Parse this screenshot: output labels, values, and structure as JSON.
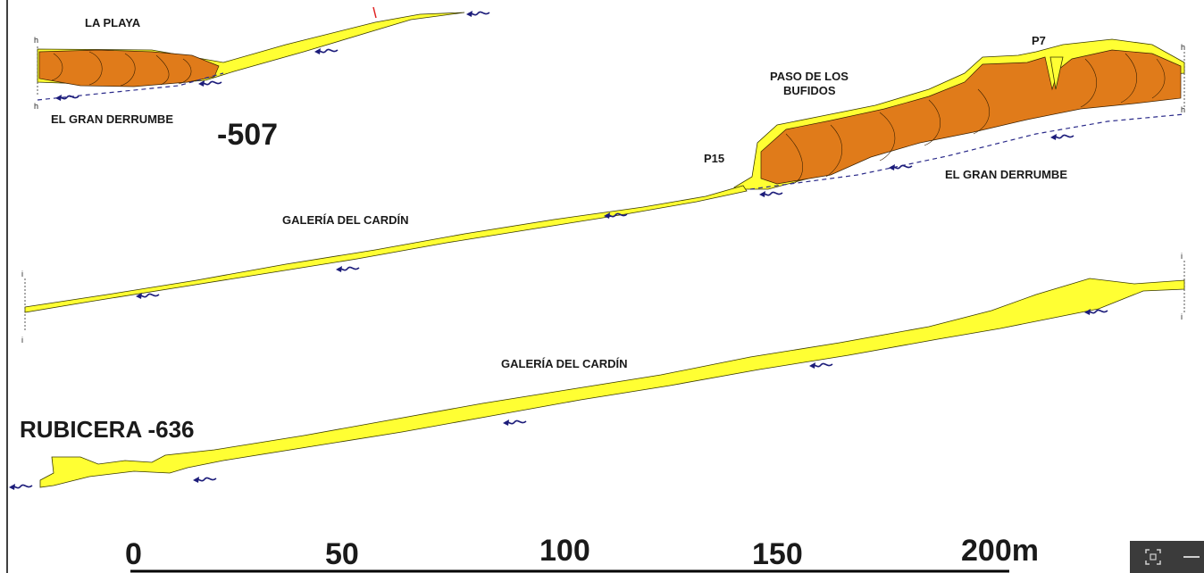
{
  "labels": {
    "la_playa": "LA PLAYA",
    "gran_derrumbe_left": "EL GRAN DERRUMBE",
    "depth_507": "-507",
    "paso_line1": "PASO DE LOS",
    "paso_line2": "BUFIDOS",
    "p7": "P7",
    "p15": "P15",
    "gran_derrumbe_right": "EL GRAN DERRUMBE",
    "galeria_1": "GALERÍA DEL CARDÍN",
    "galeria_2": "GALERÍA DEL CARDÍN",
    "rubicera": "RUBICERA -636"
  },
  "section_marks": {
    "h": "h",
    "i": "i"
  },
  "scale_bar": {
    "ticks": [
      "0",
      "50",
      "100",
      "150",
      "200m"
    ]
  },
  "icons": [
    "water-flow-icon",
    "fit-screen-icon",
    "zoom-out-icon"
  ],
  "colors": {
    "passage": "#ffff33",
    "boulders": "#e07b1a",
    "flow_arrow": "#1c1c7a",
    "dashed_floor": "#2b2b8a"
  }
}
